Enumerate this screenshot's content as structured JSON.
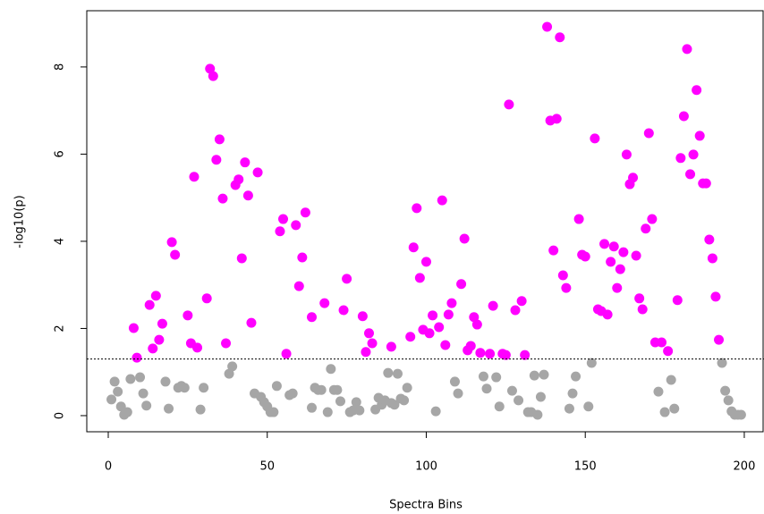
{
  "chart_data": {
    "type": "scatter",
    "x_label": "Spectra Bins",
    "y_label": "-log10(p)",
    "xlim": [
      -6.75,
      206.2
    ],
    "ylim": [
      -0.37,
      9.29
    ],
    "xticks": [
      0,
      50,
      100,
      150,
      200
    ],
    "yticks": [
      0,
      2,
      4,
      6,
      8
    ],
    "threshold": 1.3,
    "series": [
      {
        "color": "#ff00ff",
        "x": [
          8,
          9,
          13,
          14,
          15,
          16,
          17,
          20,
          21,
          25,
          26,
          27,
          28,
          31,
          32,
          33,
          34,
          35,
          36,
          37,
          40,
          41,
          42,
          43,
          44,
          45,
          47,
          54,
          55,
          56,
          59,
          60,
          61,
          62,
          64,
          68,
          74,
          75,
          80,
          81,
          82,
          83,
          89,
          95,
          96,
          97,
          98,
          99,
          100,
          101,
          102,
          104,
          105,
          106,
          107,
          108,
          111,
          112,
          113,
          114,
          115,
          116,
          117,
          120,
          121,
          124,
          125,
          126,
          128,
          130,
          131,
          138,
          139,
          140,
          141,
          142,
          143,
          144,
          148,
          149,
          150,
          153,
          154,
          155,
          156,
          157,
          158,
          159,
          160,
          161,
          162,
          163,
          164,
          165,
          166,
          167,
          168,
          169,
          170,
          171,
          172,
          174,
          176,
          179,
          180,
          181,
          182,
          183,
          184,
          185,
          186,
          187,
          188,
          189,
          190,
          191,
          192
        ],
        "values": [
          2.01,
          1.33,
          2.54,
          1.54,
          2.75,
          1.74,
          2.11,
          3.98,
          3.69,
          2.3,
          1.66,
          5.48,
          1.56,
          2.69,
          7.96,
          7.79,
          5.87,
          6.34,
          4.98,
          1.66,
          5.29,
          5.42,
          3.61,
          5.81,
          5.05,
          2.13,
          5.58,
          4.23,
          4.51,
          1.42,
          4.37,
          2.97,
          3.63,
          4.66,
          2.26,
          2.58,
          2.42,
          3.14,
          2.28,
          1.46,
          1.89,
          1.66,
          1.58,
          1.81,
          3.86,
          4.76,
          3.16,
          1.97,
          3.53,
          1.89,
          2.3,
          2.03,
          4.94,
          1.62,
          2.32,
          2.58,
          3.02,
          4.06,
          1.5,
          1.6,
          2.26,
          2.09,
          1.44,
          1.42,
          2.52,
          1.42,
          1.39,
          7.14,
          2.42,
          2.63,
          1.39,
          8.92,
          6.77,
          3.79,
          6.81,
          8.68,
          3.22,
          2.93,
          4.51,
          3.69,
          3.65,
          6.36,
          2.44,
          2.4,
          3.94,
          2.32,
          3.53,
          3.88,
          2.93,
          3.36,
          3.75,
          5.99,
          5.31,
          5.46,
          3.67,
          2.69,
          2.44,
          4.29,
          6.48,
          4.51,
          1.68,
          1.68,
          1.48,
          2.65,
          5.91,
          6.87,
          8.41,
          5.54,
          5.99,
          7.47,
          6.42,
          5.33,
          5.33,
          4.04,
          3.61,
          2.73,
          1.74
        ]
      },
      {
        "color": "#a6a6a6",
        "x": [
          1,
          2,
          3,
          4,
          5,
          6,
          7,
          10,
          11,
          12,
          18,
          19,
          22,
          23,
          24,
          29,
          30,
          38,
          39,
          46,
          48,
          49,
          50,
          51,
          52,
          53,
          57,
          58,
          64,
          65,
          66,
          67,
          69,
          70,
          71,
          72,
          73,
          76,
          77,
          78,
          79,
          84,
          85,
          86,
          87,
          88,
          89,
          90,
          91,
          92,
          93,
          94,
          103,
          109,
          110,
          118,
          119,
          122,
          123,
          127,
          129,
          132,
          133,
          134,
          135,
          136,
          137,
          145,
          146,
          147,
          151,
          152,
          173,
          175,
          177,
          178,
          193,
          194,
          195,
          196,
          197,
          198,
          199
        ],
        "values": [
          0.37,
          0.78,
          0.55,
          0.21,
          0.02,
          0.08,
          0.84,
          0.88,
          0.51,
          0.23,
          0.78,
          0.16,
          0.64,
          0.68,
          0.64,
          0.14,
          0.64,
          0.96,
          1.13,
          0.51,
          0.43,
          0.31,
          0.21,
          0.08,
          0.08,
          0.68,
          0.47,
          0.51,
          0.18,
          0.64,
          0.59,
          0.59,
          0.08,
          1.07,
          0.59,
          0.59,
          0.33,
          0.08,
          0.12,
          0.31,
          0.12,
          0.14,
          0.41,
          0.25,
          0.35,
          0.98,
          0.29,
          0.25,
          0.96,
          0.39,
          0.35,
          0.64,
          0.1,
          0.78,
          0.51,
          0.9,
          0.62,
          0.88,
          0.21,
          0.57,
          0.35,
          0.08,
          0.08,
          0.92,
          0.02,
          0.43,
          0.94,
          0.16,
          0.51,
          0.9,
          0.21,
          1.21,
          0.55,
          0.08,
          0.82,
          0.16,
          1.21,
          0.57,
          0.35,
          0.1,
          0.02,
          0.02,
          0.02
        ]
      }
    ]
  }
}
